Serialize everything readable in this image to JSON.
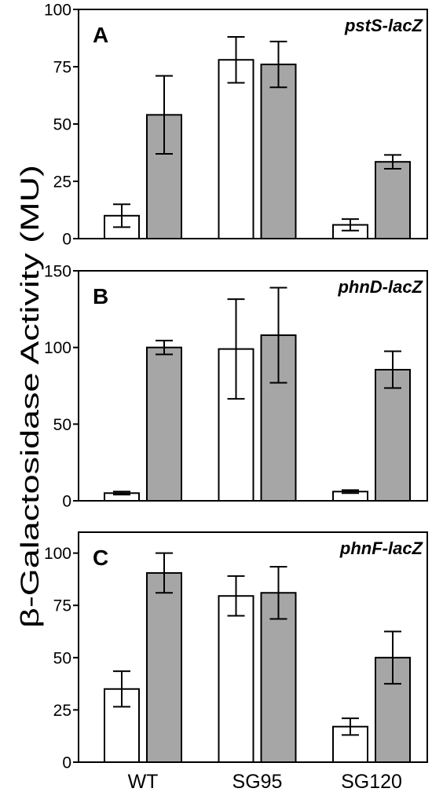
{
  "chart_data": {
    "type": "bar",
    "ylabel": "β-Galactosidase Activity (MU)",
    "categories": [
      "WT",
      "SG95",
      "SG120"
    ],
    "grid": false,
    "error_bars": true,
    "panels": [
      {
        "label": "A",
        "title": "pstS-lacZ",
        "ylim": [
          0,
          100
        ],
        "yticks": [
          0,
          25,
          50,
          75,
          100
        ],
        "series": [
          {
            "fill": "#ffffff",
            "values": [
              10,
              78,
              6
            ],
            "errors": [
              5,
              10,
              2.5
            ]
          },
          {
            "fill": "#a6a6a6",
            "values": [
              54,
              76,
              33.5
            ],
            "errors": [
              17,
              10,
              3
            ]
          }
        ]
      },
      {
        "label": "B",
        "title": "phnD-lacZ",
        "ylim": [
          0,
          150
        ],
        "yticks": [
          0,
          50,
          100,
          150
        ],
        "series": [
          {
            "fill": "#ffffff",
            "values": [
              5,
              99,
              6
            ],
            "errors": [
              1,
              32.5,
              1
            ]
          },
          {
            "fill": "#a6a6a6",
            "values": [
              100,
              108,
              85.5
            ],
            "errors": [
              4.5,
              31,
              12
            ]
          }
        ]
      },
      {
        "label": "C",
        "title": "phnF-lacZ",
        "ylim": [
          0,
          110
        ],
        "yticks": [
          0,
          25,
          50,
          75,
          100
        ],
        "series": [
          {
            "fill": "#ffffff",
            "values": [
              35,
              79.5,
              17
            ],
            "errors": [
              8.5,
              9.5,
              4
            ]
          },
          {
            "fill": "#a6a6a6",
            "values": [
              90.5,
              81,
              50
            ],
            "errors": [
              9.5,
              12.5,
              12.5
            ]
          }
        ]
      }
    ]
  }
}
